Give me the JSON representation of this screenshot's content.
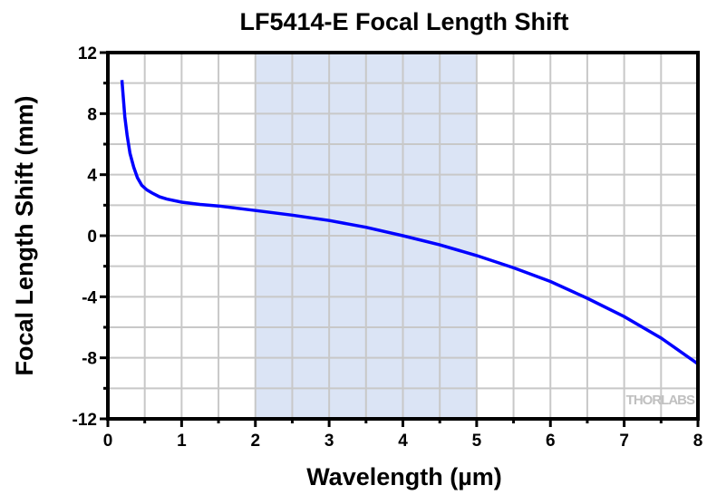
{
  "chart_data": {
    "type": "line",
    "title": "LF5414-E Focal Length Shift",
    "xlabel": "Wavelength (µm)",
    "ylabel": "Focal Length Shift (mm)",
    "xlim": [
      0,
      8
    ],
    "ylim": [
      -12,
      12
    ],
    "xticks": [
      "0",
      "1",
      "2",
      "3",
      "4",
      "5",
      "6",
      "7",
      "8"
    ],
    "xtick_values": [
      0,
      1,
      2,
      3,
      4,
      5,
      6,
      7,
      8
    ],
    "yticks": [
      "12",
      "8",
      "4",
      "0",
      "-4",
      "-8",
      "-12"
    ],
    "ytick_values": [
      12,
      8,
      4,
      0,
      -4,
      -8,
      -12
    ],
    "grid": true,
    "shaded_region": [
      2,
      5
    ],
    "series": [
      {
        "name": "Focal Length Shift",
        "color": "#0000ff",
        "x": [
          0.19,
          0.21,
          0.23,
          0.26,
          0.3,
          0.35,
          0.4,
          0.46,
          0.53,
          0.6,
          0.7,
          0.8,
          1.0,
          1.25,
          1.5,
          1.75,
          2.0,
          2.5,
          3.0,
          3.5,
          4.0,
          4.5,
          5.0,
          5.5,
          6.0,
          6.5,
          7.0,
          7.5,
          8.0
        ],
        "y": [
          10.2,
          9.0,
          7.8,
          6.6,
          5.4,
          4.5,
          3.8,
          3.3,
          3.0,
          2.8,
          2.55,
          2.4,
          2.2,
          2.05,
          1.95,
          1.8,
          1.65,
          1.35,
          1.0,
          0.55,
          0.0,
          -0.6,
          -1.3,
          -2.1,
          -3.0,
          -4.1,
          -5.3,
          -6.7,
          -8.4
        ]
      }
    ],
    "watermark": "THORLABS"
  },
  "colors": {
    "shade": "#dbe4f5",
    "grid": "#c8c8c8",
    "line": "#0000ff"
  }
}
